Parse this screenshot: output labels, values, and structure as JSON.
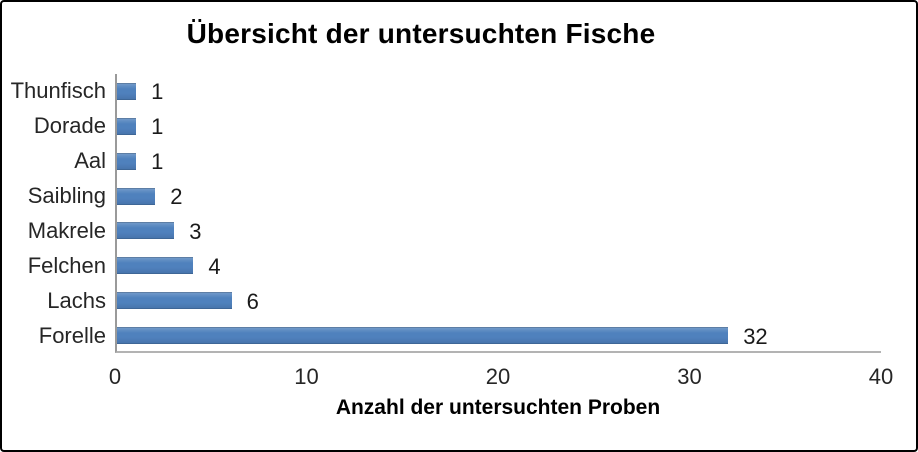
{
  "chart_data": {
    "type": "bar",
    "orientation": "horizontal",
    "title": "Übersicht der untersuchten Fische",
    "xlabel": "Anzahl der untersuchten Proben",
    "categories": [
      "Thunfisch",
      "Dorade",
      "Aal",
      "Saibling",
      "Makrele",
      "Felchen",
      "Lachs",
      "Forelle"
    ],
    "category_order": "top-to-bottom",
    "values": [
      1,
      1,
      1,
      2,
      3,
      4,
      6,
      32
    ],
    "data_labels": [
      "1",
      "1",
      "1",
      "2",
      "3",
      "4",
      "6",
      "32"
    ],
    "xlim": [
      0,
      40
    ],
    "x_ticks": [
      "0",
      "10",
      "20",
      "30",
      "40"
    ],
    "x_tick_values": [
      0,
      10,
      20,
      30,
      40
    ],
    "grid": "off",
    "legend": "none",
    "bar_color": "#4f81bd",
    "vertical_axis_line_color": "#9a9a9a",
    "horizontal_axis_line_color": "#b3b3b3"
  }
}
